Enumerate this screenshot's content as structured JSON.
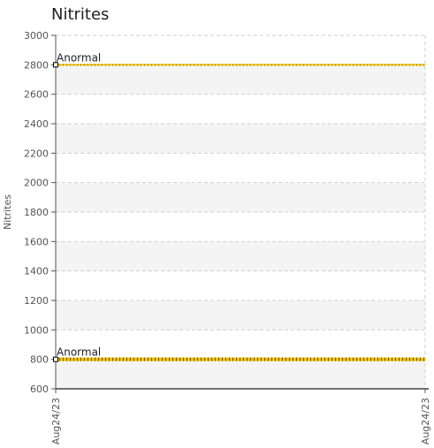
{
  "chart_data": {
    "type": "line",
    "title": "Nitrites",
    "ylabel": "Nitrites",
    "xlabel": "",
    "ylim": [
      600,
      3000
    ],
    "yticks": [
      600,
      800,
      1000,
      1200,
      1400,
      1600,
      1800,
      2000,
      2200,
      2400,
      2600,
      2800,
      3000
    ],
    "xticks": [
      "Aug24/23",
      "Aug24/23"
    ],
    "grid": true,
    "series": [
      {
        "x": [
          "Aug24/23",
          "Aug24/23"
        ],
        "values": [
          2800,
          2800
        ],
        "label": "Anormal",
        "color": "#f2c200"
      },
      {
        "x": [
          "Aug24/23",
          "Aug24/23"
        ],
        "values": [
          800,
          800
        ],
        "label": "Anormal",
        "color": "#f2c200"
      }
    ]
  }
}
